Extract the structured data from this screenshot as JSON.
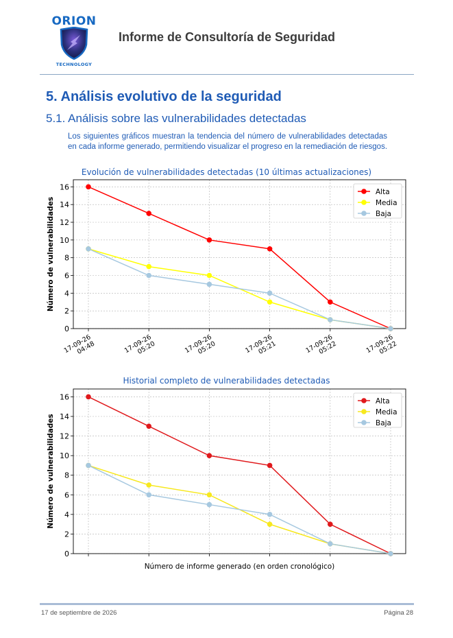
{
  "header": {
    "logo_name": "ORION",
    "logo_sub": "TECHNOLOGY",
    "title": "Informe de Consultoría de Seguridad"
  },
  "section": {
    "heading": "5. Análisis evolutivo de la seguridad",
    "subheading": "5.1. Análisis sobre las vulnerabilidades detectadas",
    "intro": "Los siguientes gráficos muestran la tendencia del número de vulnerabilidades detectadas en cada informe generado, permitiendo visualizar el progreso en la remediación de riesgos."
  },
  "chart_data": [
    {
      "type": "line",
      "title": "Evolución de vulnerabilidades detectadas (10 últimas actualizaciones)",
      "ylabel": "Número de vulnerabilidades",
      "xlabel": "",
      "categories": [
        "17-09-26\n04:48",
        "17-09-26\n05:20",
        "17-09-26\n05:20",
        "17-09-26\n05:21",
        "17-09-26\n05:22",
        "17-09-26\n05:22"
      ],
      "ylim": [
        0,
        16.8
      ],
      "yticks": [
        0,
        2,
        4,
        6,
        8,
        10,
        12,
        14,
        16
      ],
      "grid": true,
      "legend": "top-right",
      "series": [
        {
          "name": "Alta",
          "color": "#ff0000",
          "values": [
            16,
            13,
            10,
            9,
            3,
            0
          ]
        },
        {
          "name": "Media",
          "color": "#ffff00",
          "values": [
            9,
            7,
            6,
            3,
            1,
            0
          ]
        },
        {
          "name": "Baja",
          "color": "#a6c8e0",
          "values": [
            9,
            6,
            5,
            4,
            1,
            0
          ]
        }
      ]
    },
    {
      "type": "line",
      "title": "Historial completo de vulnerabilidades detectadas",
      "ylabel": "Número de vulnerabilidades",
      "xlabel": "Número de informe generado (en orden cronológico)",
      "categories": [
        "",
        "",
        "",
        "",
        "",
        ""
      ],
      "ylim": [
        0,
        16.8
      ],
      "yticks": [
        0,
        2,
        4,
        6,
        8,
        10,
        12,
        14,
        16
      ],
      "grid": true,
      "legend": "top-right",
      "series": [
        {
          "name": "Alta",
          "color": "#e0191c",
          "values": [
            16,
            13,
            10,
            9,
            3,
            0
          ]
        },
        {
          "name": "Media",
          "color": "#f7e81e",
          "values": [
            9,
            7,
            6,
            3,
            1,
            0
          ]
        },
        {
          "name": "Baja",
          "color": "#a6c8e0",
          "values": [
            9,
            6,
            5,
            4,
            1,
            0
          ]
        }
      ]
    }
  ],
  "footer": {
    "date": "17 de septiembre de 2026",
    "page": "Página 28"
  }
}
